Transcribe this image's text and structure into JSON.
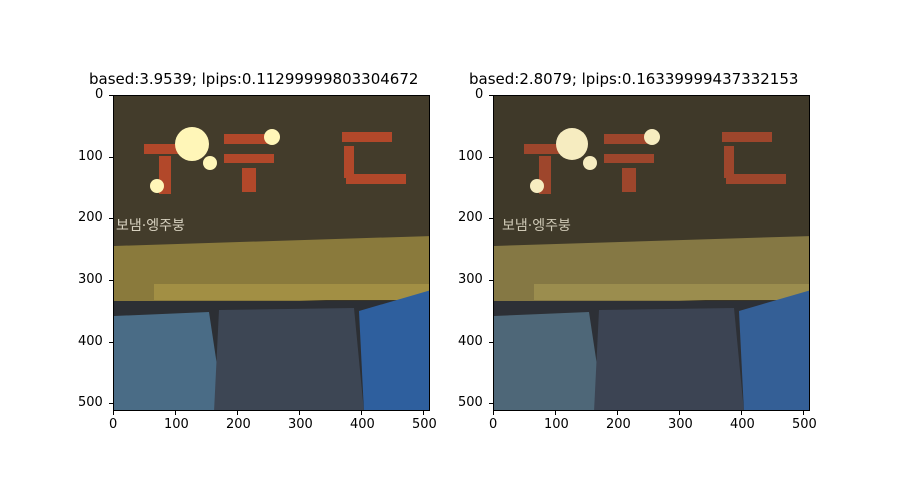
{
  "panels": [
    {
      "title": "based:3.9539; lpips:0.11299999803304672",
      "xticks": [
        "0",
        "100",
        "200",
        "300",
        "400",
        "500"
      ],
      "yticks": [
        "0",
        "100",
        "200",
        "300",
        "400",
        "500"
      ],
      "sign_text": "보냄·엥주붕"
    },
    {
      "title": "based:2.8079; lpips:0.16339999437332153",
      "xticks": [
        "0",
        "100",
        "200",
        "300",
        "400",
        "500"
      ],
      "yticks": [
        "0",
        "100",
        "200",
        "300",
        "400",
        "500"
      ],
      "sign_text": "보냄·엥주붕"
    }
  ],
  "colors": {
    "sign_background": "#3a3526",
    "sign_letters": "#b2482a",
    "lamp": "#fff6b8",
    "awning": "#8a7a3c",
    "shirt_blue": "#4a6c86",
    "shirt_gray": "#3d4654",
    "shirt_right": "#2e5f9e"
  }
}
